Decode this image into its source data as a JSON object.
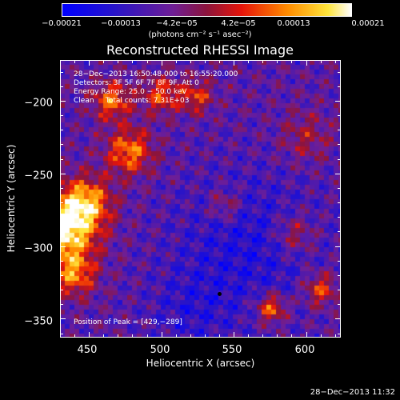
{
  "chart_data": {
    "type": "heatmap",
    "title": "Reconstructed RHESSI Image",
    "xlabel": "Heliocentric X (arcsec)",
    "ylabel": "Heliocentric Y (arcsec)",
    "xlim": [
      430,
      624
    ],
    "ylim": [
      -363,
      -172
    ],
    "x_ticks": [
      450,
      500,
      550,
      600
    ],
    "y_ticks": [
      -200,
      -250,
      -300,
      -350
    ],
    "x_tick_labels": [
      "450",
      "500",
      "550",
      "600"
    ],
    "y_tick_labels": [
      "−200",
      "−250",
      "−300",
      "−350"
    ],
    "colorbar": {
      "min": -0.00021,
      "max": 0.00021,
      "tick_labels": [
        "−0.00021",
        "−0.00013",
        "−4.2e−05",
        "4.2e−05",
        "0.00013",
        "0.00021"
      ],
      "unit_label": "(photons cm⁻² s⁻¹ asec⁻²)"
    },
    "annotations": [
      "28−Dec−2013 16:50:48.000 to 16:55:20.000",
      "Detectors: 3F 5F 6F 7F 8F 9F, Att 0",
      "Energy Range: 25.0 − 50.0 keV",
      "Clean     Total counts: 7.31E+03"
    ],
    "peak": {
      "label": "Position of Peak = [429,−289]",
      "x": 429,
      "y": -289
    },
    "marker": {
      "x": 540,
      "y": -333
    },
    "colors": {
      "background": "#000000",
      "frame": "#ffffff"
    }
  },
  "footer": {
    "timestamp": "28−Dec−2013 11:32"
  }
}
